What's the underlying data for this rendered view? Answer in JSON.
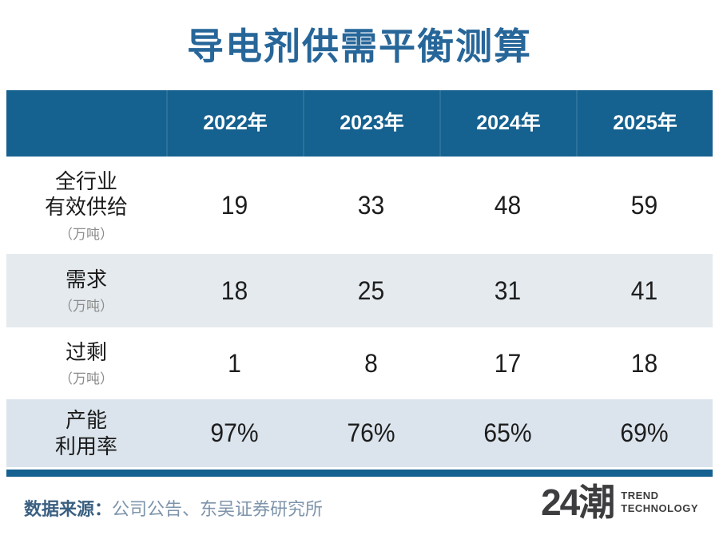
{
  "title": "导电剂供需平衡测算",
  "table": {
    "columns": [
      "2022年",
      "2023年",
      "2024年",
      "2025年"
    ],
    "rows": [
      {
        "label_lines": [
          "全行业",
          "有效供给"
        ],
        "unit": "（万吨）",
        "values": [
          "19",
          "33",
          "48",
          "59"
        ]
      },
      {
        "label_lines": [
          "需求"
        ],
        "unit": "（万吨）",
        "values": [
          "18",
          "25",
          "31",
          "41"
        ]
      },
      {
        "label_lines": [
          "过剩"
        ],
        "unit": "（万吨）",
        "values": [
          "1",
          "8",
          "17",
          "18"
        ]
      },
      {
        "label_lines": [
          "产能",
          "利用率"
        ],
        "unit": "",
        "values": [
          "97%",
          "76%",
          "65%",
          "69%"
        ]
      }
    ]
  },
  "footer": {
    "source_label": "数据来源：",
    "source_text": "公司公告、东吴证券研究所",
    "logo_text": "24潮",
    "logo_sub1": "TREND",
    "logo_sub2": "TECHNOLOGY"
  },
  "colors": {
    "title_blue": "#276699",
    "header_blue": "#15618F",
    "row_alt_gray": "#E5EAEE",
    "row_alt_blue": "#DBE4EC",
    "source_label_blue": "#3A5F80",
    "source_text_blue": "#7E94AB",
    "logo_gray": "#3D3D3F"
  },
  "chart_data": {
    "type": "table",
    "title": "导电剂供需平衡测算",
    "columns": [
      "",
      "2022年",
      "2023年",
      "2024年",
      "2025年"
    ],
    "rows": [
      {
        "label": "全行业有效供给",
        "unit": "万吨",
        "values": [
          19,
          33,
          48,
          59
        ]
      },
      {
        "label": "需求",
        "unit": "万吨",
        "values": [
          18,
          25,
          31,
          41
        ]
      },
      {
        "label": "过剩",
        "unit": "万吨",
        "values": [
          1,
          8,
          17,
          18
        ]
      },
      {
        "label": "产能利用率",
        "unit": "%",
        "values": [
          "97%",
          "76%",
          "65%",
          "69%"
        ]
      }
    ],
    "source": "数据来源：公司公告、东吴证券研究所",
    "layout": {
      "grid": false,
      "legend": "none",
      "header_background": "#15618F",
      "zebra_rows": true
    }
  }
}
